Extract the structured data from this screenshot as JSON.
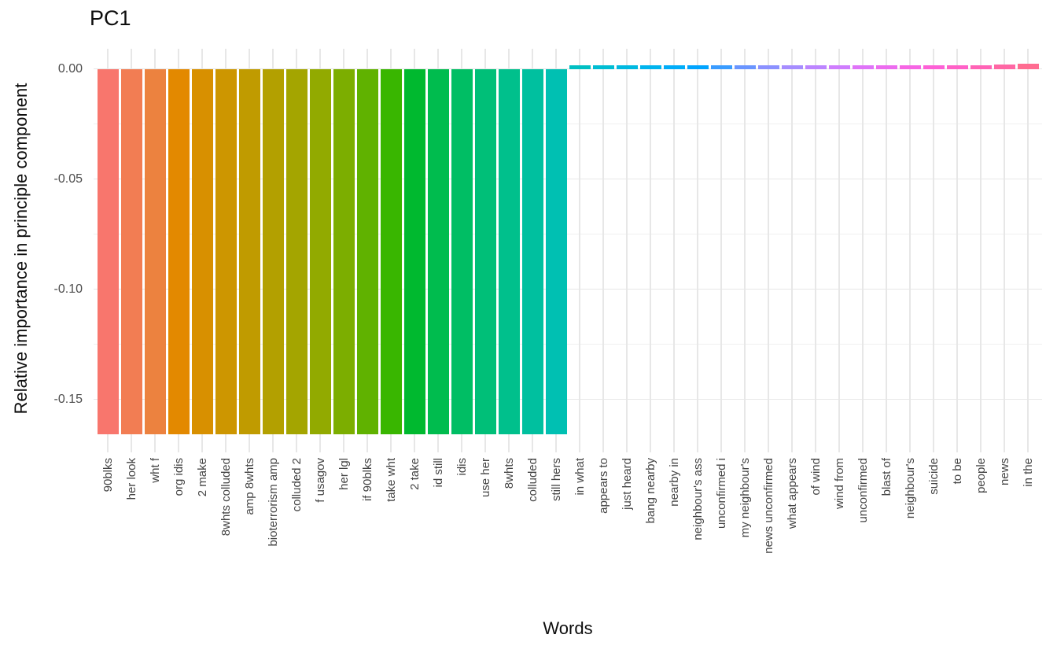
{
  "title": "PC1",
  "axes": {
    "x_title": "Words",
    "y_title": "Relative importance in principle component",
    "y_tick_labels": [
      "0.00",
      "-0.05",
      "-0.10",
      "-0.15"
    ]
  },
  "colors": {
    "background": "#FFFFFF",
    "grid_major": "#E7E7E7",
    "grid_minor": "#F0F0F0",
    "tick_label": "#4D4D4D",
    "text": "#0D0D0D"
  },
  "chart_data": {
    "type": "bar",
    "title": "PC1",
    "xlabel": "Words",
    "ylabel": "Relative importance in principle component",
    "ylim": [
      -0.174,
      0.0093
    ],
    "y_major_ticks": [
      0,
      -0.05,
      -0.1,
      -0.15
    ],
    "y_minor_gridlines": [
      -0.025,
      -0.075,
      -0.125
    ],
    "grid": "on",
    "legend": "none",
    "categories": [
      "90blks",
      "her look",
      "wht f",
      "org idis",
      "2 make",
      "8whts colluded",
      "amp 8whts",
      "bioterrorism amp",
      "colluded 2",
      "f usagov",
      "her lgl",
      "if 90blks",
      "take wht",
      "2 take",
      "id still",
      "idis",
      "use her",
      "8whts",
      "colluded",
      "still hers",
      "in what",
      "appears to",
      "just heard",
      "bang nearby",
      "nearby in",
      "neighbour's ass",
      "unconfirmed i",
      "my neighbour's",
      "news unconfirmed",
      "what appears",
      "of wind",
      "wind from",
      "unconfirmed",
      "blast of",
      "neighbour's",
      "suicide",
      "to be",
      "people",
      "news",
      "in the"
    ],
    "values": [
      -0.166,
      -0.166,
      -0.166,
      -0.166,
      -0.166,
      -0.166,
      -0.166,
      -0.166,
      -0.166,
      -0.166,
      -0.166,
      -0.166,
      -0.166,
      -0.166,
      -0.166,
      -0.166,
      -0.166,
      -0.166,
      -0.166,
      -0.166,
      0.0015,
      0.0015,
      0.0015,
      0.0015,
      0.0015,
      0.0015,
      0.0015,
      0.0015,
      0.0015,
      0.0015,
      0.0015,
      0.0015,
      0.0015,
      0.0015,
      0.0015,
      0.0015,
      0.0015,
      0.0015,
      0.002,
      0.0022
    ],
    "bar_colors": [
      "#F8766D",
      "#F27D53",
      "#EC823F",
      "#E38900",
      "#D89000",
      "#CD9600",
      "#C09B00",
      "#B3A000",
      "#A4A500",
      "#92AA00",
      "#7CAE00",
      "#60B200",
      "#39B600",
      "#00B92F",
      "#00BC4E",
      "#00BE64",
      "#00BF78",
      "#00C08C",
      "#00C09F",
      "#00C0B2",
      "#00BFC3",
      "#00BDD3",
      "#00B9E1",
      "#00B4EE",
      "#00ADF9",
      "#00A4FF",
      "#3A9CFF",
      "#6A95FF",
      "#8B91FF",
      "#A68DFF",
      "#BC85FF",
      "#CF7DFE",
      "#DF74F8",
      "#EC6CEF",
      "#F666E4",
      "#FD61D6",
      "#FF61C7",
      "#FF63B6",
      "#FF67A4",
      "#FF6C91"
    ]
  }
}
